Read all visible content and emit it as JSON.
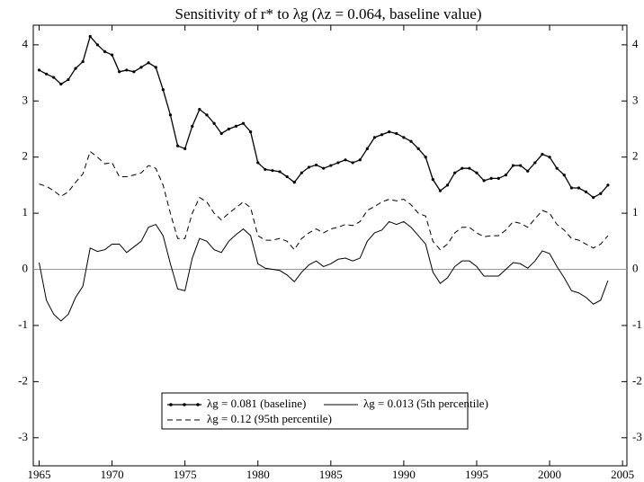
{
  "chart_data": {
    "type": "line",
    "title": "Sensitivity of r* to λg (λz = 0.064, baseline value)",
    "x": [
      1965,
      1965.5,
      1966,
      1966.5,
      1967,
      1967.5,
      1968,
      1968.5,
      1969,
      1969.5,
      1970,
      1970.5,
      1971,
      1971.5,
      1972,
      1972.5,
      1973,
      1973.5,
      1974,
      1974.5,
      1975,
      1975.5,
      1976,
      1976.5,
      1977,
      1977.5,
      1978,
      1978.5,
      1979,
      1979.5,
      1980,
      1980.5,
      1981,
      1981.5,
      1982,
      1982.5,
      1983,
      1983.5,
      1984,
      1984.5,
      1985,
      1985.5,
      1986,
      1986.5,
      1987,
      1987.5,
      1988,
      1988.5,
      1989,
      1989.5,
      1990,
      1990.5,
      1991,
      1991.5,
      1992,
      1992.5,
      1993,
      1993.5,
      1994,
      1994.5,
      1995,
      1995.5,
      1996,
      1996.5,
      1997,
      1997.5,
      1998,
      1998.5,
      1999,
      1999.5,
      2000,
      2000.5,
      2001,
      2001.5,
      2002,
      2002.5,
      2003,
      2003.5,
      2004
    ],
    "series": [
      {
        "name": "λg = 0.081 (baseline)",
        "color": "#000000",
        "style": "solid-markers",
        "values": [
          3.55,
          3.48,
          3.42,
          3.3,
          3.38,
          3.58,
          3.7,
          4.15,
          4.0,
          3.88,
          3.82,
          3.52,
          3.55,
          3.52,
          3.6,
          3.68,
          3.6,
          3.2,
          2.75,
          2.2,
          2.15,
          2.55,
          2.85,
          2.75,
          2.6,
          2.42,
          2.5,
          2.55,
          2.6,
          2.45,
          1.9,
          1.78,
          1.76,
          1.74,
          1.65,
          1.55,
          1.72,
          1.82,
          1.86,
          1.8,
          1.85,
          1.9,
          1.95,
          1.9,
          1.95,
          2.15,
          2.35,
          2.4,
          2.45,
          2.42,
          2.35,
          2.28,
          2.15,
          2.0,
          1.6,
          1.4,
          1.5,
          1.72,
          1.8,
          1.8,
          1.72,
          1.58,
          1.62,
          1.62,
          1.68,
          1.85,
          1.85,
          1.75,
          1.9,
          2.05,
          2.0,
          1.8,
          1.68,
          1.45,
          1.45,
          1.38,
          1.28,
          1.35,
          1.5
        ]
      },
      {
        "name": "λg = 0.013 (5th percentile)",
        "color": "#000000",
        "style": "solid",
        "values": [
          0.12,
          -0.55,
          -0.8,
          -0.92,
          -0.8,
          -0.5,
          -0.3,
          0.38,
          0.32,
          0.35,
          0.45,
          0.45,
          0.3,
          0.4,
          0.5,
          0.75,
          0.8,
          0.6,
          0.1,
          -0.35,
          -0.38,
          0.2,
          0.55,
          0.5,
          0.35,
          0.3,
          0.5,
          0.62,
          0.72,
          0.6,
          0.1,
          0.02,
          0.0,
          -0.02,
          -0.1,
          -0.22,
          -0.05,
          0.08,
          0.15,
          0.05,
          0.1,
          0.18,
          0.2,
          0.15,
          0.2,
          0.5,
          0.65,
          0.7,
          0.85,
          0.8,
          0.85,
          0.75,
          0.6,
          0.45,
          -0.05,
          -0.25,
          -0.15,
          0.05,
          0.15,
          0.15,
          0.05,
          -0.12,
          -0.12,
          -0.12,
          0.0,
          0.12,
          0.1,
          0.02,
          0.15,
          0.33,
          0.28,
          0.05,
          -0.15,
          -0.38,
          -0.42,
          -0.5,
          -0.62,
          -0.55,
          -0.2
        ]
      },
      {
        "name": "λg = 0.12 (95th percentile)",
        "color": "#000000",
        "style": "dashed",
        "values": [
          1.52,
          1.48,
          1.4,
          1.3,
          1.38,
          1.55,
          1.7,
          2.1,
          2.0,
          1.88,
          1.9,
          1.65,
          1.65,
          1.68,
          1.72,
          1.85,
          1.8,
          1.5,
          1.0,
          0.55,
          0.55,
          1.0,
          1.28,
          1.2,
          1.0,
          0.88,
          1.0,
          1.1,
          1.2,
          1.1,
          0.6,
          0.52,
          0.52,
          0.55,
          0.5,
          0.35,
          0.55,
          0.65,
          0.72,
          0.65,
          0.72,
          0.75,
          0.8,
          0.78,
          0.85,
          1.05,
          1.12,
          1.2,
          1.25,
          1.22,
          1.25,
          1.15,
          1.0,
          0.95,
          0.5,
          0.35,
          0.45,
          0.65,
          0.75,
          0.75,
          0.65,
          0.58,
          0.6,
          0.6,
          0.7,
          0.85,
          0.82,
          0.75,
          0.9,
          1.05,
          1.0,
          0.8,
          0.7,
          0.55,
          0.52,
          0.45,
          0.38,
          0.45,
          0.6
        ]
      }
    ],
    "xlim": [
      1964.6,
      2005.3
    ],
    "xticks": [
      1965,
      1970,
      1975,
      1980,
      1985,
      1990,
      1995,
      2000,
      2005
    ],
    "ylim": [
      -3.5,
      4.35
    ],
    "yticks": [
      -3,
      -2,
      -1,
      0,
      1,
      2,
      3,
      4
    ],
    "y2lim": [
      -3.5,
      4.35
    ],
    "y2ticks": [
      -3,
      -2,
      -1,
      0,
      1,
      2,
      3,
      4
    ],
    "reference_line": 0,
    "reference_color": "#999999",
    "grid": false,
    "legend": "bottom"
  }
}
